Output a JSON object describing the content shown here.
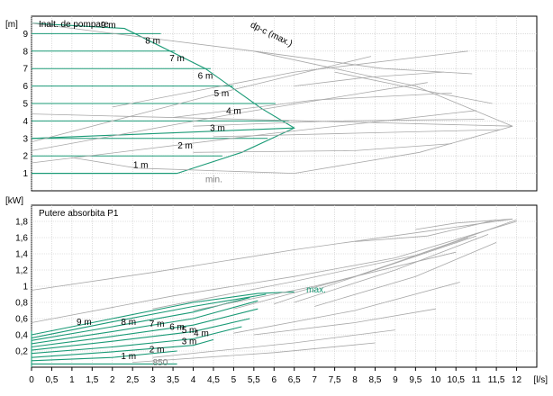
{
  "chart_data": [
    {
      "type": "line",
      "title": "Inalt. de pompare",
      "ylabel_unit": "[m]",
      "xlabel_unit": "[l/s]",
      "xlim": [
        0,
        12.5
      ],
      "ylim": [
        0,
        10
      ],
      "grid": true,
      "x_ticks": [
        "0",
        "0,5",
        "1",
        "1,5",
        "2",
        "2,5",
        "3",
        "3,5",
        "4",
        "4,5",
        "5",
        "5,5",
        "6",
        "6,5",
        "7",
        "7,5",
        "8",
        "8,5",
        "9",
        "9,5",
        "10",
        "10,5",
        "11",
        "11,5",
        "12"
      ],
      "y_ticks": [
        "1",
        "2",
        "3",
        "4",
        "5",
        "6",
        "7",
        "8",
        "9"
      ],
      "curve_labels": [
        "9 m",
        "8 m",
        "7 m",
        "6 m",
        "5 m",
        "4 m",
        "3 m",
        "2 m",
        "1 m"
      ],
      "curve_label_anchors": [
        [
          1.9,
          9.5
        ],
        [
          3.0,
          8.6
        ],
        [
          3.6,
          7.6
        ],
        [
          4.3,
          6.6
        ],
        [
          4.7,
          5.6
        ],
        [
          5.0,
          4.6
        ],
        [
          4.6,
          3.6
        ],
        [
          3.8,
          2.6
        ],
        [
          2.7,
          1.5
        ]
      ],
      "annotations": [
        {
          "text": "dp-c (max.)",
          "x": 5.4,
          "y": 9.4,
          "color": "#000000",
          "rotate": 26
        },
        {
          "text": "min.",
          "x": 4.3,
          "y": 0.5,
          "color": "#808080",
          "rotate": 0
        }
      ],
      "series": [
        {
          "color": "#1a9a76",
          "x": [
            0,
            2.3,
            4.3,
            5.7,
            6.5,
            5.2,
            3.6
          ],
          "y": [
            9.6,
            9.3,
            7.0,
            4.7,
            3.6,
            2.2,
            1.0
          ]
        },
        {
          "color": "#1a9a76",
          "x": [
            0,
            3.6
          ],
          "y": [
            1.0,
            1.0
          ]
        },
        {
          "color": "#1a9a76",
          "x": [
            0,
            6.5
          ],
          "y": [
            3.0,
            3.6
          ]
        },
        {
          "color": "#a8a8a8",
          "x": [
            0,
            5.5,
            9.5,
            11.9
          ],
          "y": [
            9.6,
            8.0,
            6.0,
            3.7
          ]
        },
        {
          "color": "#a8a8a8",
          "x": [
            1.0,
            2.6,
            6.5,
            9.6,
            11.9
          ],
          "y": [
            1.9,
            1.3,
            1.0,
            2.2,
            3.7
          ]
        },
        {
          "color": "#a8a8a8",
          "x": [
            0,
            11.9
          ],
          "y": [
            4.4,
            3.7
          ]
        },
        {
          "color": "#a8a8a8",
          "x": [
            0,
            5.0,
            8.4
          ],
          "y": [
            2.8,
            5.8,
            7.7
          ]
        },
        {
          "color": "#a8a8a8",
          "x": [
            0,
            5.0,
            9.8
          ],
          "y": [
            2.3,
            4.4,
            6.2
          ]
        },
        {
          "color": "#a8a8a8",
          "x": [
            0,
            6.0,
            11.0
          ],
          "y": [
            1.6,
            3.3,
            4.6
          ]
        },
        {
          "color": "#a8a8a8",
          "x": [
            2.0,
            6.5,
            10.8
          ],
          "y": [
            4.8,
            6.8,
            8.0
          ]
        },
        {
          "color": "#a8a8a8",
          "x": [
            3.5,
            7.0,
            10.4
          ],
          "y": [
            4.2,
            5.2,
            5.6
          ]
        },
        {
          "color": "#a8a8a8",
          "x": [
            4.0,
            7.5,
            11.2
          ],
          "y": [
            3.7,
            4.0,
            4.1
          ]
        },
        {
          "color": "#a8a8a8",
          "x": [
            4.5,
            8.0,
            11.6
          ],
          "y": [
            3.1,
            3.3,
            3.5
          ]
        },
        {
          "color": "#a8a8a8",
          "x": [
            4.0,
            8.0,
            10.4
          ],
          "y": [
            2.2,
            2.3,
            2.7
          ]
        },
        {
          "color": "#a8a8a8",
          "x": [
            6.5,
            8.3,
            10.2
          ],
          "y": [
            6.0,
            6.5,
            6.8
          ]
        },
        {
          "color": "#a8a8a8",
          "x": [
            5.5,
            8.7,
            10.9
          ],
          "y": [
            8.0,
            7.0,
            6.7
          ]
        },
        {
          "color": "#a8a8a8",
          "x": [
            7.5,
            9.6,
            11.4
          ],
          "y": [
            6.8,
            5.8,
            5.0
          ]
        }
      ],
      "levels": [
        1,
        2,
        3,
        4,
        5,
        6,
        7,
        8,
        9
      ],
      "level_colors": "#1a9a76"
    },
    {
      "type": "line",
      "title": "Putere absorbita P1",
      "ylabel_unit": "[kW]",
      "xlabel_unit": "[l/s]",
      "xlim": [
        0,
        12.5
      ],
      "ylim": [
        0,
        2.0
      ],
      "grid": true,
      "x_ticks": [
        "0",
        "0,5",
        "1",
        "1,5",
        "2",
        "2,5",
        "3",
        "3,5",
        "4",
        "4,5",
        "5",
        "5,5",
        "6",
        "6,5",
        "7",
        "7,5",
        "8",
        "8,5",
        "9",
        "9,5",
        "10",
        "10,5",
        "11",
        "11,5",
        "12"
      ],
      "y_ticks": [
        "0,2",
        "0,4",
        "0,6",
        "0,8",
        "1",
        "1,2",
        "1,4",
        "1,6",
        "1,8"
      ],
      "curve_labels": [
        "9 m",
        "8 m",
        "7 m",
        "6 m",
        "5 m",
        "4 m",
        "3 m",
        "2 m",
        "1 m"
      ],
      "curve_label_anchors": [
        [
          1.3,
          0.56
        ],
        [
          2.4,
          0.56
        ],
        [
          3.1,
          0.54
        ],
        [
          3.6,
          0.5
        ],
        [
          3.9,
          0.46
        ],
        [
          4.2,
          0.42
        ],
        [
          3.9,
          0.32
        ],
        [
          3.1,
          0.22
        ],
        [
          2.4,
          0.14
        ]
      ],
      "annotations": [
        {
          "text": "max.",
          "x": 6.8,
          "y": 0.92,
          "color": "#1a9a76",
          "rotate": 0
        },
        {
          "text": "850",
          "x": 3.0,
          "y": 0.02,
          "color": "#808080",
          "rotate": 0
        }
      ],
      "series": [
        {
          "color": "#1a9a76",
          "x": [
            0,
            2.0,
            4.0,
            5.6,
            6.5
          ],
          "y": [
            0.4,
            0.6,
            0.8,
            0.91,
            0.93
          ]
        },
        {
          "color": "#1a9a76",
          "x": [
            0,
            2.0,
            4.0,
            5.8
          ],
          "y": [
            0.36,
            0.56,
            0.75,
            0.9
          ]
        },
        {
          "color": "#1a9a76",
          "x": [
            0,
            2.0,
            4.0,
            5.4
          ],
          "y": [
            0.33,
            0.5,
            0.68,
            0.86
          ]
        },
        {
          "color": "#1a9a76",
          "x": [
            0,
            2.0,
            4.0,
            5.6
          ],
          "y": [
            0.29,
            0.44,
            0.6,
            0.82
          ]
        },
        {
          "color": "#1a9a76",
          "x": [
            0,
            2.0,
            4.0,
            5.6
          ],
          "y": [
            0.25,
            0.38,
            0.52,
            0.72
          ]
        },
        {
          "color": "#1a9a76",
          "x": [
            0,
            2.0,
            4.0,
            5.4
          ],
          "y": [
            0.21,
            0.32,
            0.44,
            0.6
          ]
        },
        {
          "color": "#1a9a76",
          "x": [
            0,
            2.0,
            4.0,
            5.2
          ],
          "y": [
            0.17,
            0.25,
            0.35,
            0.5
          ]
        },
        {
          "color": "#1a9a76",
          "x": [
            0,
            2.0,
            4.0,
            4.5
          ],
          "y": [
            0.12,
            0.19,
            0.27,
            0.34
          ]
        },
        {
          "color": "#1a9a76",
          "x": [
            0,
            2.0,
            3.6
          ],
          "y": [
            0.08,
            0.12,
            0.2
          ]
        },
        {
          "color": "#1a9a76",
          "x": [
            0,
            3.6
          ],
          "y": [
            0.04,
            0.04
          ]
        },
        {
          "color": "#1a9a76",
          "x": [
            0,
            0.0
          ],
          "y": [
            0.0,
            0.45
          ]
        },
        {
          "color": "#a8a8a8",
          "x": [
            0,
            3.0,
            6.5,
            9.8,
            11.9
          ],
          "y": [
            0.95,
            1.17,
            1.45,
            1.68,
            1.83
          ]
        },
        {
          "color": "#a8a8a8",
          "x": [
            0,
            3.5,
            6.5,
            9.0,
            12.0
          ],
          "y": [
            0.55,
            0.88,
            1.12,
            1.35,
            1.8
          ]
        },
        {
          "color": "#a8a8a8",
          "x": [
            3.0,
            6.5,
            9.5,
            12.0
          ],
          "y": [
            0.72,
            1.06,
            1.38,
            1.82
          ]
        },
        {
          "color": "#a8a8a8",
          "x": [
            4.0,
            7.0,
            10.5
          ],
          "y": [
            0.7,
            1.0,
            1.42
          ]
        },
        {
          "color": "#a8a8a8",
          "x": [
            5.0,
            8.0,
            10.8
          ],
          "y": [
            0.72,
            1.12,
            1.6
          ]
        },
        {
          "color": "#a8a8a8",
          "x": [
            6.0,
            8.5,
            11.0
          ],
          "y": [
            0.78,
            1.2,
            1.62
          ]
        },
        {
          "color": "#a8a8a8",
          "x": [
            6.5,
            9.0,
            11.3
          ],
          "y": [
            0.8,
            1.2,
            1.64
          ]
        },
        {
          "color": "#a8a8a8",
          "x": [
            7.0,
            9.5,
            11.5
          ],
          "y": [
            0.75,
            1.12,
            1.54
          ]
        },
        {
          "color": "#a8a8a8",
          "x": [
            5.0,
            8.0,
            10.6
          ],
          "y": [
            0.42,
            0.7,
            1.05
          ]
        },
        {
          "color": "#a8a8a8",
          "x": [
            5.5,
            8.0,
            10.0
          ],
          "y": [
            0.4,
            0.55,
            0.72
          ]
        },
        {
          "color": "#a8a8a8",
          "x": [
            3.0,
            6.5,
            9.0
          ],
          "y": [
            0.12,
            0.3,
            0.46
          ]
        },
        {
          "color": "#a8a8a8",
          "x": [
            2.5,
            6.0,
            8.5
          ],
          "y": [
            0.06,
            0.18,
            0.3
          ]
        },
        {
          "color": "#a8a8a8",
          "x": [
            8.0,
            9.8,
            11.5
          ],
          "y": [
            1.55,
            1.62,
            1.82
          ]
        },
        {
          "color": "#a8a8a8",
          "x": [
            9.5,
            10.5,
            11.9
          ],
          "y": [
            1.7,
            1.78,
            1.83
          ]
        }
      ]
    }
  ]
}
